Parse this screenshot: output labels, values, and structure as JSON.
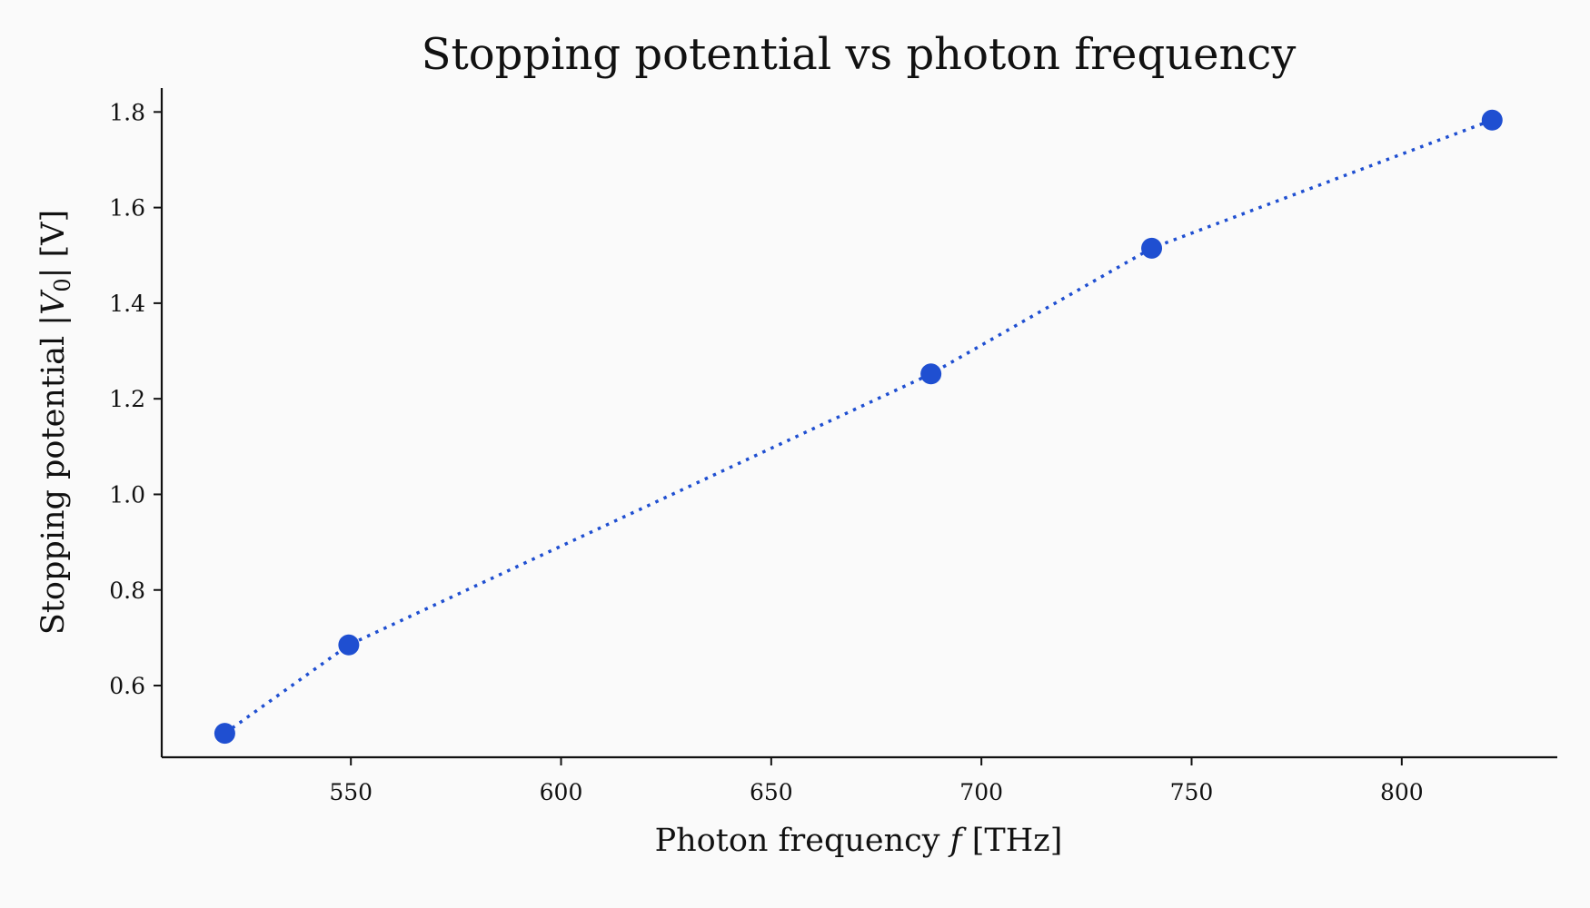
{
  "chart_data": {
    "type": "scatter",
    "title": "Stopping potential vs photon frequency",
    "xlabel_text": "Photon frequency ",
    "xlabel_symbol": "f",
    "xlabel_unit": " [THz]",
    "ylabel_text": "Stopping potential |",
    "ylabel_symbol": "V",
    "ylabel_subscript": "0",
    "ylabel_unit": "| [V]",
    "xlim": [
      505,
      837
    ],
    "ylim": [
      0.45,
      1.85
    ],
    "xticks": [
      550,
      600,
      650,
      700,
      750,
      800
    ],
    "yticks": [
      0.6,
      0.8,
      1.0,
      1.2,
      1.4,
      1.6,
      1.8
    ],
    "grid": false,
    "series": [
      {
        "x": [
          520.0,
          549.5,
          688.0,
          740.5,
          821.5
        ],
        "y": [
          0.5,
          0.685,
          1.252,
          1.515,
          1.783
        ],
        "color": "#1f4fd1",
        "line_style": "dotted",
        "marker": "circle"
      }
    ]
  }
}
